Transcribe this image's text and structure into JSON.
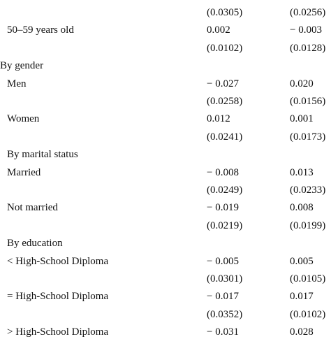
{
  "sections": [
    {
      "heading": null,
      "rows": [
        {
          "label": null,
          "values": [
            "(0.0305)",
            "(0.0256)"
          ]
        },
        {
          "label": "50–59 years old",
          "values": [
            "0.002",
            "− 0.003"
          ]
        },
        {
          "label": null,
          "values": [
            "(0.0102)",
            "(0.0128)"
          ]
        }
      ]
    },
    {
      "heading": "By gender",
      "rows": [
        {
          "label": "Men",
          "values": [
            "− 0.027",
            "0.020"
          ]
        },
        {
          "label": null,
          "values": [
            "(0.0258)",
            "(0.0156)"
          ]
        },
        {
          "label": "Women",
          "values": [
            "0.012",
            "0.001"
          ]
        },
        {
          "label": null,
          "values": [
            "(0.0241)",
            "(0.0173)"
          ]
        }
      ]
    },
    {
      "heading": "By marital status",
      "rows": [
        {
          "label": "Married",
          "values": [
            "− 0.008",
            "0.013"
          ]
        },
        {
          "label": null,
          "values": [
            "(0.0249)",
            "(0.0233)"
          ]
        },
        {
          "label": "Not married",
          "values": [
            "− 0.019",
            "0.008"
          ]
        },
        {
          "label": null,
          "values": [
            "(0.0219)",
            "(0.0199)"
          ]
        }
      ]
    },
    {
      "heading": "By education",
      "rows": [
        {
          "label": "< High-School Diploma",
          "values": [
            "− 0.005",
            "0.005"
          ]
        },
        {
          "label": null,
          "values": [
            "(0.0301)",
            "(0.0105)"
          ]
        },
        {
          "label": "= High-School Diploma",
          "values": [
            "− 0.017",
            "0.017"
          ]
        },
        {
          "label": null,
          "values": [
            "(0.0352)",
            "(0.0102)"
          ]
        },
        {
          "label": "> High-School Diploma",
          "values": [
            "− 0.031",
            "0.028"
          ]
        }
      ]
    }
  ]
}
